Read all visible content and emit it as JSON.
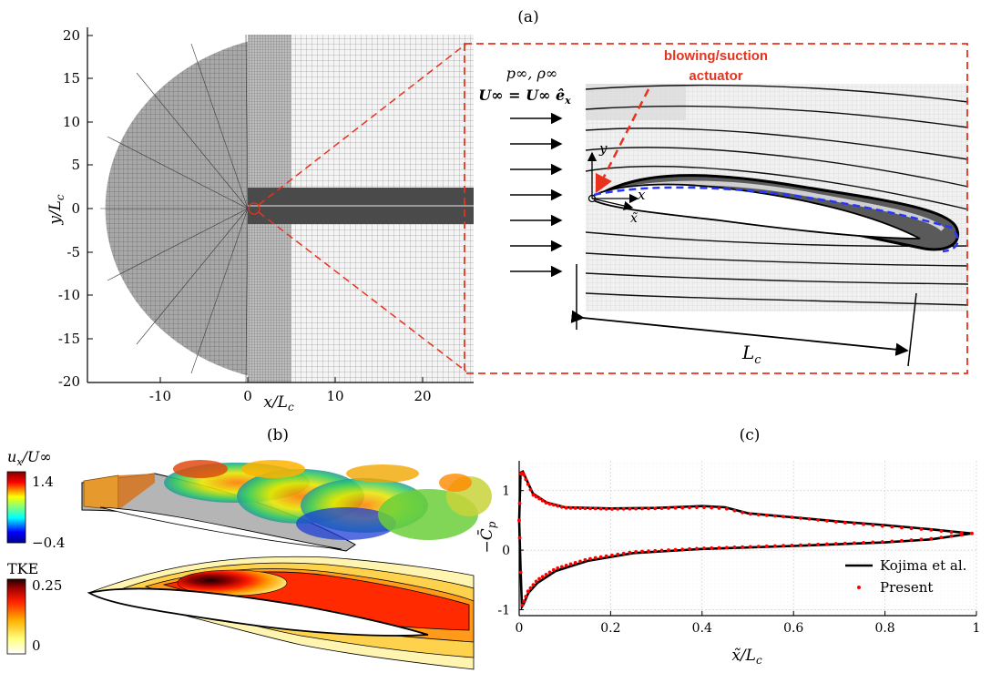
{
  "labels": {
    "panel_a": "(a)",
    "panel_b": "(b)",
    "panel_c": "(c)"
  },
  "panel_a": {
    "y_axis_label": "y/L",
    "y_axis_sub": "c",
    "x_axis_label": "x/L",
    "x_axis_sub": "c",
    "y_ticks": [
      "20",
      "15",
      "10",
      "5",
      "0",
      "-5",
      "-10",
      "-15",
      "-20"
    ],
    "x_ticks": [
      "-10",
      "0",
      "10",
      "20"
    ],
    "inset": {
      "actuator_line1": "blowing/suction",
      "actuator_line2": "actuator",
      "freestream_line1": "p∞, ρ∞",
      "freestream_line2": "U∞ = U∞ ê",
      "freestream_sub": "x",
      "axis_x": "x",
      "axis_y": "y",
      "axis_xtilde": "x̃",
      "chord_label": "L",
      "chord_sub": "c"
    }
  },
  "panel_b": {
    "cbar1_title": "u",
    "cbar1_title_sub": "x",
    "cbar1_title_rest": "/U∞",
    "cbar1_max": "1.4",
    "cbar1_min": "−0.4",
    "cbar2_title": "TKE",
    "cbar2_max": "0.25",
    "cbar2_min": "0"
  },
  "chart_data": {
    "type": "scatter",
    "title": "",
    "xlabel": "x̃/L",
    "xlabel_sub": "c",
    "ylabel": "−C̄",
    "ylabel_sub": "p",
    "xlim": [
      0,
      1
    ],
    "ylim": [
      -1.1,
      1.5
    ],
    "x_ticks": [
      "0",
      "0.2",
      "0.4",
      "0.6",
      "0.8",
      "1"
    ],
    "y_ticks": [
      "1",
      "0",
      "-1"
    ],
    "grid": true,
    "legend_position": "bottom-right",
    "series": [
      {
        "name": "Kojima et al.",
        "style": "line",
        "color": "#000000",
        "upper": {
          "x": [
            0.0,
            0.003,
            0.008,
            0.015,
            0.03,
            0.06,
            0.1,
            0.2,
            0.3,
            0.4,
            0.45,
            0.5,
            0.6,
            0.7,
            0.8,
            0.9,
            0.95,
            0.99
          ],
          "y": [
            0.5,
            1.3,
            1.32,
            1.2,
            0.95,
            0.8,
            0.72,
            0.7,
            0.71,
            0.74,
            0.72,
            0.62,
            0.55,
            0.48,
            0.42,
            0.35,
            0.31,
            0.28
          ]
        },
        "lower": {
          "x": [
            0.0,
            0.003,
            0.006,
            0.01,
            0.02,
            0.04,
            0.08,
            0.15,
            0.25,
            0.4,
            0.6,
            0.8,
            0.9,
            0.99
          ],
          "y": [
            0.5,
            -0.3,
            -0.95,
            -0.9,
            -0.72,
            -0.55,
            -0.35,
            -0.18,
            -0.05,
            0.02,
            0.07,
            0.13,
            0.18,
            0.28
          ]
        }
      },
      {
        "name": "Present",
        "style": "dots",
        "color": "#ff0000",
        "upper": {
          "x": [
            0.0,
            0.003,
            0.008,
            0.015,
            0.03,
            0.06,
            0.1,
            0.2,
            0.3,
            0.4,
            0.45,
            0.5,
            0.6,
            0.7,
            0.8,
            0.9,
            0.95,
            0.99
          ],
          "y": [
            0.5,
            1.28,
            1.3,
            1.18,
            0.93,
            0.79,
            0.71,
            0.69,
            0.7,
            0.72,
            0.7,
            0.61,
            0.55,
            0.47,
            0.4,
            0.34,
            0.3,
            0.28
          ]
        },
        "lower": {
          "x": [
            0.0,
            0.003,
            0.006,
            0.01,
            0.02,
            0.04,
            0.08,
            0.15,
            0.25,
            0.4,
            0.6,
            0.8,
            0.9,
            0.99
          ],
          "y": [
            0.5,
            -0.3,
            -0.93,
            -0.86,
            -0.68,
            -0.5,
            -0.31,
            -0.15,
            -0.03,
            0.03,
            0.08,
            0.14,
            0.19,
            0.28
          ]
        }
      }
    ]
  }
}
